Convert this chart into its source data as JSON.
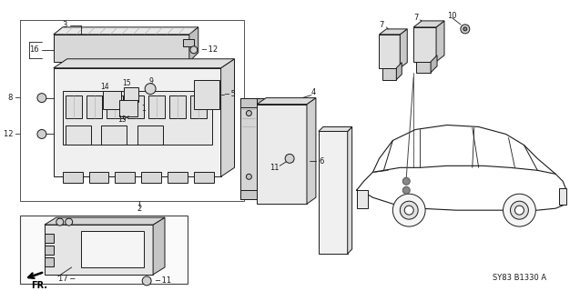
{
  "bg_color": "#ffffff",
  "line_color": "#1a1a1a",
  "diagram_code": "SY83 B1330 A",
  "fig_w": 6.37,
  "fig_h": 3.2,
  "dpi": 100
}
